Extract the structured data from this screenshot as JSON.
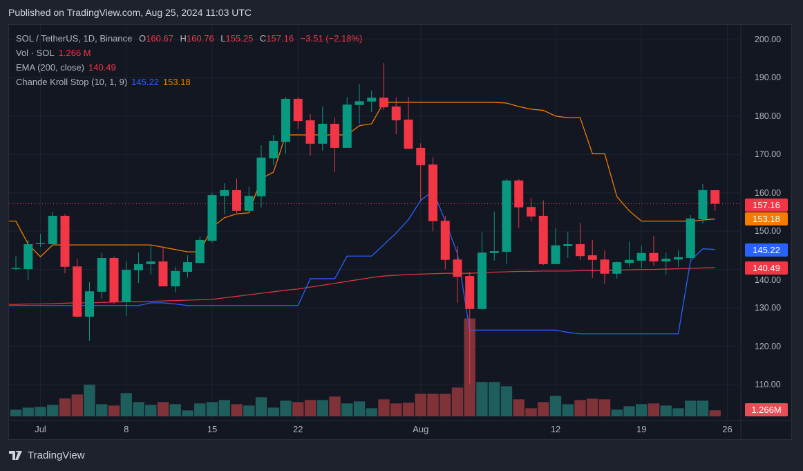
{
  "published": "Published on TradingView.com, Aug 25, 2024 11:03 UTC",
  "legend": {
    "symbol": "SOL / TetherUS, 1D, Binance",
    "o_label": "O",
    "o": "160.67",
    "h_label": "H",
    "h": "160.76",
    "l_label": "L",
    "l": "155.25",
    "c_label": "C",
    "c": "157.16",
    "change": "−3.51 (−2.18%)",
    "vol_label": "Vol · SOL",
    "vol": "1.266 M",
    "ema_label": "EMA (200, close)",
    "ema": "140.49",
    "cks_label": "Chande Kroll Stop (10, 1, 9)",
    "cks_long": "145.22",
    "cks_short": "153.18"
  },
  "price_axis": [
    "200.00",
    "190.00",
    "180.00",
    "170.00",
    "160.00",
    "150.00",
    "140.00",
    "130.00",
    "120.00",
    "110.00"
  ],
  "badges": {
    "last": "157.16",
    "cks_short": "153.18",
    "cks_long": "145.22",
    "ema": "140.49",
    "volume": "1.266M"
  },
  "time_axis": [
    "Jul",
    "8",
    "15",
    "22",
    "Aug",
    "12",
    "19",
    "26"
  ],
  "logo": "TradingView",
  "colors": {
    "up": "#089981",
    "down": "#f23645",
    "ema": "#e0323e",
    "cks_long": "#2962ff",
    "cks_short": "#f57c00",
    "vol_up": "#1e5e5c",
    "vol_down": "#7f3238"
  },
  "chart_data": {
    "type": "candlestick",
    "title": "SOL / TetherUS, 1D, Binance",
    "ylim": [
      105,
      205
    ],
    "y_ticks": [
      110,
      120,
      130,
      140,
      150,
      160,
      170,
      180,
      190,
      200
    ],
    "x_ticks": [
      {
        "label": "Jul",
        "date": "07-01"
      },
      {
        "label": "8",
        "date": "07-08"
      },
      {
        "label": "15",
        "date": "07-15"
      },
      {
        "label": "22",
        "date": "07-22"
      },
      {
        "label": "Aug",
        "date": "08-01"
      },
      {
        "label": "12",
        "date": "08-12"
      },
      {
        "label": "19",
        "date": "08-19"
      },
      {
        "label": "26",
        "date": "08-26"
      }
    ],
    "grid": true,
    "columns": [
      "date",
      "open",
      "high",
      "low",
      "close",
      "volume_M",
      "ema200",
      "cks_long",
      "cks_short"
    ],
    "candles": [
      [
        "06-29",
        140.2,
        143.4,
        139.8,
        140.4,
        1.41,
        130.9,
        130.6,
        152.6
      ],
      [
        "06-30",
        140.1,
        147.7,
        137.2,
        146.6,
        1.84,
        131.0,
        130.6,
        146.6
      ],
      [
        "07-01",
        146.8,
        149.3,
        145.9,
        146.9,
        1.99,
        131.0,
        130.6,
        143.3
      ],
      [
        "07-02",
        146.6,
        155.1,
        146.3,
        154.0,
        2.42,
        131.1,
        130.6,
        146.4
      ],
      [
        "07-03",
        154.0,
        154.5,
        139.0,
        140.7,
        3.78,
        131.2,
        130.6,
        146.4
      ],
      [
        "07-04",
        140.8,
        142.8,
        127.5,
        127.7,
        4.61,
        131.3,
        130.6,
        146.4
      ],
      [
        "07-05",
        127.7,
        136.7,
        121.4,
        134.3,
        6.65,
        131.3,
        130.6,
        146.4
      ],
      [
        "07-06",
        134.2,
        144.4,
        132.4,
        143.0,
        2.57,
        131.4,
        130.6,
        146.4
      ],
      [
        "07-07",
        143.0,
        143.4,
        131.0,
        131.5,
        2.28,
        131.5,
        130.6,
        146.4
      ],
      [
        "07-08",
        131.5,
        142.1,
        127.9,
        139.9,
        4.9,
        131.6,
        130.6,
        146.4
      ],
      [
        "07-09",
        139.8,
        144.4,
        136.5,
        141.4,
        3.01,
        131.6,
        130.6,
        146.4
      ],
      [
        "07-10",
        141.4,
        146.4,
        138.7,
        142.1,
        2.42,
        131.7,
        131.3,
        146.4
      ],
      [
        "07-11",
        142.1,
        146.1,
        135.6,
        135.6,
        3.01,
        131.8,
        131.3,
        145.8
      ],
      [
        "07-12",
        135.6,
        140.7,
        134.0,
        139.6,
        2.57,
        131.9,
        131.0,
        145.2
      ],
      [
        "07-13",
        139.4,
        143.7,
        137.9,
        141.9,
        1.26,
        132.0,
        130.6,
        144.6
      ],
      [
        "07-14",
        141.7,
        148.6,
        141.7,
        147.7,
        2.72,
        132.1,
        130.6,
        144.6
      ],
      [
        "07-15",
        147.5,
        160.0,
        147.0,
        159.4,
        3.01,
        132.2,
        130.6,
        151.0
      ],
      [
        "07-16",
        159.2,
        162.5,
        154.4,
        160.7,
        3.44,
        132.6,
        130.6,
        153.5
      ],
      [
        "07-17",
        160.7,
        163.7,
        154.7,
        155.3,
        2.57,
        133.0,
        130.6,
        154.5
      ],
      [
        "07-18",
        155.3,
        161.6,
        155.3,
        159.2,
        2.28,
        133.4,
        130.6,
        154.8
      ],
      [
        "07-19",
        159.1,
        172.4,
        156.2,
        169.2,
        4.03,
        133.8,
        130.6,
        163.7
      ],
      [
        "07-20",
        169.0,
        175.1,
        167.2,
        173.5,
        1.84,
        134.2,
        130.6,
        165.4
      ],
      [
        "07-21",
        173.3,
        185.0,
        170.2,
        184.5,
        3.3,
        134.6,
        130.6,
        175.1
      ],
      [
        "07-22",
        184.5,
        185.0,
        176.7,
        178.7,
        3.01,
        134.9,
        130.6,
        175.1
      ],
      [
        "07-23",
        178.9,
        180.5,
        169.7,
        172.8,
        3.44,
        135.4,
        137.6,
        175.1
      ],
      [
        "07-24",
        172.8,
        182.5,
        171.0,
        178.0,
        3.44,
        135.9,
        137.6,
        175.1
      ],
      [
        "07-25",
        178.0,
        179.6,
        165.4,
        171.7,
        4.17,
        136.4,
        137.6,
        175.1
      ],
      [
        "07-26",
        171.7,
        185.0,
        171.7,
        183.0,
        2.72,
        136.9,
        143.5,
        175.1
      ],
      [
        "07-27",
        182.9,
        188.3,
        178.0,
        183.9,
        3.15,
        137.4,
        143.5,
        177.5
      ],
      [
        "07-28",
        183.8,
        186.7,
        181.1,
        184.8,
        1.7,
        137.9,
        143.5,
        178.0
      ],
      [
        "07-29",
        184.8,
        193.9,
        181.6,
        182.3,
        3.59,
        138.3,
        146.5,
        183.6
      ],
      [
        "07-30",
        182.5,
        184.8,
        175.3,
        178.9,
        2.72,
        138.5,
        149.5,
        183.6
      ],
      [
        "07-31",
        179.1,
        185.0,
        171.5,
        171.5,
        2.86,
        138.7,
        153.0,
        183.6
      ],
      [
        "08-01",
        171.7,
        172.9,
        158.0,
        167.2,
        4.75,
        138.8,
        158.0,
        183.6
      ],
      [
        "08-02",
        167.4,
        169.3,
        150.0,
        152.6,
        4.75,
        138.9,
        160.5,
        183.6
      ],
      [
        "08-03",
        152.7,
        154.0,
        140.1,
        142.5,
        4.75,
        139.0,
        152.7,
        183.6
      ],
      [
        "08-04",
        142.6,
        146.1,
        131.3,
        138.1,
        6.06,
        139.0,
        144.1,
        183.6
      ],
      [
        "08-05",
        138.3,
        139.4,
        110.0,
        129.7,
        20.6,
        139.0,
        124.2,
        183.6
      ],
      [
        "08-06",
        129.7,
        149.7,
        129.5,
        144.4,
        7.23,
        139.2,
        124.2,
        183.6
      ],
      [
        "08-07",
        144.3,
        155.1,
        142.3,
        144.8,
        7.23,
        139.3,
        124.2,
        183.6
      ],
      [
        "08-08",
        144.6,
        163.7,
        141.4,
        163.2,
        6.35,
        139.4,
        124.2,
        183.4
      ],
      [
        "08-09",
        163.2,
        163.6,
        150.8,
        156.2,
        3.59,
        139.5,
        124.2,
        182.5
      ],
      [
        "08-10",
        156.3,
        158.7,
        152.6,
        153.8,
        1.7,
        139.5,
        124.2,
        181.8
      ],
      [
        "08-11",
        154.0,
        158.0,
        141.2,
        141.4,
        3.01,
        139.6,
        124.2,
        181.5
      ],
      [
        "08-12",
        141.4,
        150.8,
        141.4,
        146.3,
        4.32,
        139.6,
        124.2,
        180.0
      ],
      [
        "08-13",
        146.1,
        149.9,
        143.0,
        146.6,
        2.57,
        139.6,
        123.6,
        179.6
      ],
      [
        "08-14",
        146.6,
        152.2,
        142.5,
        143.5,
        3.44,
        139.7,
        123.2,
        179.6
      ],
      [
        "08-15",
        143.7,
        147.7,
        137.8,
        142.5,
        3.73,
        139.7,
        123.2,
        170.2
      ],
      [
        "08-16",
        142.6,
        145.0,
        136.3,
        138.9,
        3.59,
        139.7,
        123.2,
        170.2
      ],
      [
        "08-17",
        138.9,
        142.1,
        137.6,
        141.9,
        1.41,
        139.8,
        123.2,
        159.0
      ],
      [
        "08-18",
        141.7,
        147.3,
        140.7,
        142.5,
        2.13,
        139.9,
        123.2,
        155.3
      ],
      [
        "08-19",
        142.3,
        146.2,
        140.3,
        144.3,
        2.57,
        140.0,
        123.2,
        152.6
      ],
      [
        "08-20",
        144.3,
        148.8,
        141.0,
        142.1,
        2.72,
        140.0,
        123.2,
        152.6
      ],
      [
        "08-21",
        142.1,
        144.4,
        138.7,
        142.8,
        2.28,
        140.1,
        123.2,
        152.6
      ],
      [
        "08-22",
        142.6,
        145.0,
        140.7,
        143.2,
        1.7,
        140.2,
        123.2,
        152.6
      ],
      [
        "08-23",
        143.0,
        154.2,
        142.6,
        153.3,
        3.3,
        140.3,
        142.3,
        152.6
      ],
      [
        "08-24",
        153.1,
        162.3,
        152.0,
        160.7,
        3.3,
        140.4,
        145.4,
        152.9
      ],
      [
        "08-25",
        160.67,
        160.76,
        155.25,
        157.16,
        1.266,
        140.49,
        145.22,
        153.18
      ]
    ]
  }
}
